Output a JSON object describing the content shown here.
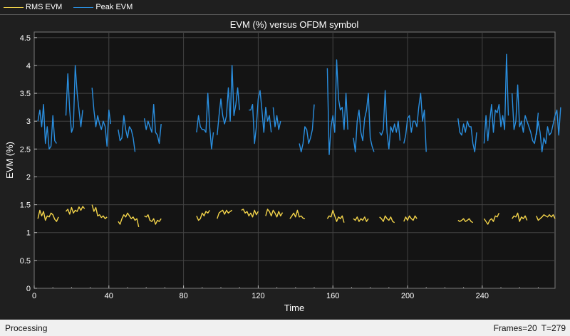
{
  "legend": {
    "items": [
      {
        "label": "RMS EVM",
        "color": "#f2d34a"
      },
      {
        "label": "Peak EVM",
        "color": "#2a8fe0"
      }
    ]
  },
  "status": {
    "left": "Processing",
    "frames": "Frames=20",
    "time": "T=279"
  },
  "chart_data": {
    "type": "line",
    "title": "EVM (%) versus OFDM symbol",
    "xlabel": "Time",
    "ylabel": "EVM (%)",
    "xlim": [
      0,
      279
    ],
    "ylim": [
      0,
      4.6
    ],
    "xticks": [
      0,
      40,
      80,
      120,
      160,
      200,
      240
    ],
    "yticks": [
      0,
      0.5,
      1,
      1.5,
      2,
      2.5,
      3,
      3.5,
      4,
      4.5
    ],
    "grid": true,
    "legend_position": "top-left",
    "series": [
      {
        "name": "RMS EVM",
        "color": "#f2d34a",
        "segments": [
          {
            "x0": 2,
            "values": [
              1.25,
              1.4,
              1.3,
              1.38,
              1.22,
              1.3,
              1.28,
              1.35,
              1.32,
              1.24,
              1.2,
              1.28
            ]
          },
          {
            "x0": 17,
            "values": [
              1.38,
              1.42,
              1.33,
              1.45,
              1.35,
              1.4,
              1.38,
              1.46,
              1.4,
              1.47,
              1.43
            ]
          },
          {
            "x0": 31,
            "values": [
              1.5,
              1.38,
              1.45,
              1.3,
              1.32,
              1.27,
              1.3,
              1.25,
              1.28
            ]
          },
          {
            "x0": 45,
            "values": [
              1.2,
              1.15,
              1.25,
              1.32,
              1.28,
              1.35,
              1.3,
              1.25,
              1.28,
              1.22,
              1.25,
              1.1
            ]
          },
          {
            "x0": 59,
            "values": [
              1.3,
              1.28,
              1.32,
              1.22,
              1.2,
              1.25,
              1.15,
              1.22,
              1.2,
              1.25
            ]
          },
          {
            "x0": 87,
            "values": [
              1.3,
              1.22,
              1.25,
              1.35,
              1.3,
              1.38,
              1.35,
              1.4
            ]
          },
          {
            "x0": 98,
            "values": [
              1.25,
              1.35,
              1.38,
              1.4,
              1.33,
              1.4,
              1.35,
              1.38,
              1.4
            ]
          },
          {
            "x0": 111,
            "values": [
              1.4,
              1.42,
              1.35,
              1.38,
              1.3,
              1.35,
              1.28,
              1.4,
              1.32,
              1.38
            ]
          },
          {
            "x0": 124,
            "values": [
              1.3,
              1.42,
              1.38,
              1.3,
              1.4,
              1.35,
              1.28,
              1.38,
              1.3,
              1.36
            ]
          },
          {
            "x0": 137,
            "values": [
              1.25,
              1.3,
              1.35,
              1.28,
              1.4,
              1.28,
              1.3,
              1.26,
              1.25
            ]
          },
          {
            "x0": 157,
            "values": [
              1.25,
              1.3,
              1.28,
              1.4,
              1.3,
              1.2,
              1.28,
              1.25,
              1.3,
              1.18
            ]
          },
          {
            "x0": 171,
            "values": [
              1.25,
              1.22,
              1.28,
              1.2,
              1.25,
              1.22,
              1.28,
              1.2,
              1.25
            ]
          },
          {
            "x0": 185,
            "values": [
              1.28,
              1.25,
              1.2,
              1.3,
              1.25,
              1.22,
              1.28,
              1.2,
              1.18
            ]
          },
          {
            "x0": 198,
            "values": [
              1.2,
              1.28,
              1.22,
              1.3,
              1.25,
              1.22,
              1.3,
              1.25
            ]
          },
          {
            "x0": 227,
            "values": [
              1.22,
              1.2,
              1.22,
              1.25,
              1.2,
              1.22,
              1.25,
              1.2,
              1.18
            ]
          },
          {
            "x0": 241,
            "values": [
              1.25,
              1.2,
              1.15,
              1.22,
              1.25,
              1.2,
              1.3,
              1.28,
              1.35
            ]
          },
          {
            "x0": 256,
            "values": [
              1.25,
              1.3,
              1.28,
              1.35,
              1.2,
              1.28,
              1.25,
              1.3,
              1.22
            ]
          },
          {
            "x0": 269,
            "values": [
              1.3,
              1.22,
              1.25,
              1.28,
              1.32,
              1.3,
              1.28,
              1.32,
              1.28,
              1.32,
              1.25
            ]
          }
        ]
      },
      {
        "name": "Peak EVM",
        "color": "#2a8fe0",
        "segments": [
          {
            "x0": 2,
            "values": [
              3.0,
              3.2,
              2.9,
              3.3,
              2.6,
              2.9,
              2.5,
              2.55,
              3.1,
              2.65,
              2.6
            ]
          },
          {
            "x0": 17,
            "values": [
              3.1,
              3.85,
              3.2,
              2.8,
              2.9,
              4.0,
              3.5,
              3.2,
              2.9,
              3.2
            ]
          },
          {
            "x0": 31,
            "values": [
              3.6,
              3.2,
              2.9,
              3.1,
              2.95,
              2.85,
              3.0,
              2.9,
              2.55,
              3.2,
              2.95
            ]
          },
          {
            "x0": 45,
            "values": [
              2.85,
              2.65,
              2.7,
              3.1,
              2.85,
              2.7,
              2.9,
              2.85,
              2.7,
              2.45
            ]
          },
          {
            "x0": 59,
            "values": [
              3.05,
              2.85,
              3.0,
              2.9,
              2.8,
              3.3,
              2.8,
              2.75,
              2.6,
              2.95
            ]
          },
          {
            "x0": 87,
            "values": [
              2.8,
              3.1,
              2.9,
              2.85,
              2.85,
              2.8,
              3.5,
              2.9,
              2.5,
              2.8
            ]
          },
          {
            "x0": 98,
            "values": [
              2.75,
              3.1,
              3.4,
              3.1,
              2.95,
              3.1,
              3.6,
              3.0,
              4.0,
              3.1,
              3.3,
              3.6,
              3.2
            ]
          },
          {
            "x0": 115,
            "values": [
              3.2,
              3.2,
              3.3,
              2.6,
              2.9,
              3.4,
              3.55,
              3.2,
              2.8,
              3.25,
              3.0,
              3.1,
              2.8
            ]
          },
          {
            "x0": 128,
            "values": [
              3.25,
              2.9,
              3.1,
              2.85,
              3.0
            ]
          },
          {
            "x0": 142,
            "values": [
              2.6,
              2.45,
              2.6,
              2.9,
              2.85,
              2.6,
              2.7,
              2.85,
              3.3
            ]
          },
          {
            "x0": 157,
            "values": [
              3.95,
              2.4,
              2.9,
              3.1,
              2.8,
              4.1,
              3.4,
              3.2,
              3.25,
              2.85,
              3.5,
              2.85
            ]
          },
          {
            "x0": 171,
            "values": [
              2.7,
              2.45,
              3.0,
              3.2,
              2.8,
              2.65,
              3.05,
              3.2,
              3.5,
              2.7,
              2.55,
              2.45
            ]
          },
          {
            "x0": 185,
            "values": [
              2.8,
              2.75,
              2.85,
              3.55,
              2.8,
              2.5,
              2.9,
              2.8,
              2.95,
              2.8,
              3.0,
              2.65
            ]
          },
          {
            "x0": 198,
            "values": [
              2.6,
              2.75,
              3.05,
              3.1,
              2.8,
              3.0,
              3.0,
              2.9,
              3.25,
              3.5,
              3.0,
              3.2,
              2.45
            ]
          },
          {
            "x0": 227,
            "values": [
              3.05,
              2.8,
              2.75,
              2.95,
              2.8,
              3.0,
              2.9,
              2.9,
              2.6,
              2.45,
              2.8
            ]
          },
          {
            "x0": 241,
            "values": [
              2.6,
              3.1,
              2.65,
              3.0,
              3.3,
              2.8,
              3.2,
              3.15,
              3.3,
              2.9,
              3.1,
              2.85,
              4.2,
              3.1
            ]
          },
          {
            "x0": 256,
            "values": [
              3.5,
              2.85,
              3.0,
              3.65,
              2.9,
              3.0,
              2.8,
              3.1,
              3.0,
              2.9,
              2.8,
              2.65,
              2.6,
              2.8,
              3.15
            ]
          },
          {
            "x0": 269,
            "values": [
              2.75,
              3.0,
              2.8,
              2.45,
              2.7,
              2.6,
              2.9,
              2.75,
              2.8,
              2.95,
              3.1,
              3.2,
              2.75,
              3.25
            ]
          }
        ]
      }
    ]
  }
}
